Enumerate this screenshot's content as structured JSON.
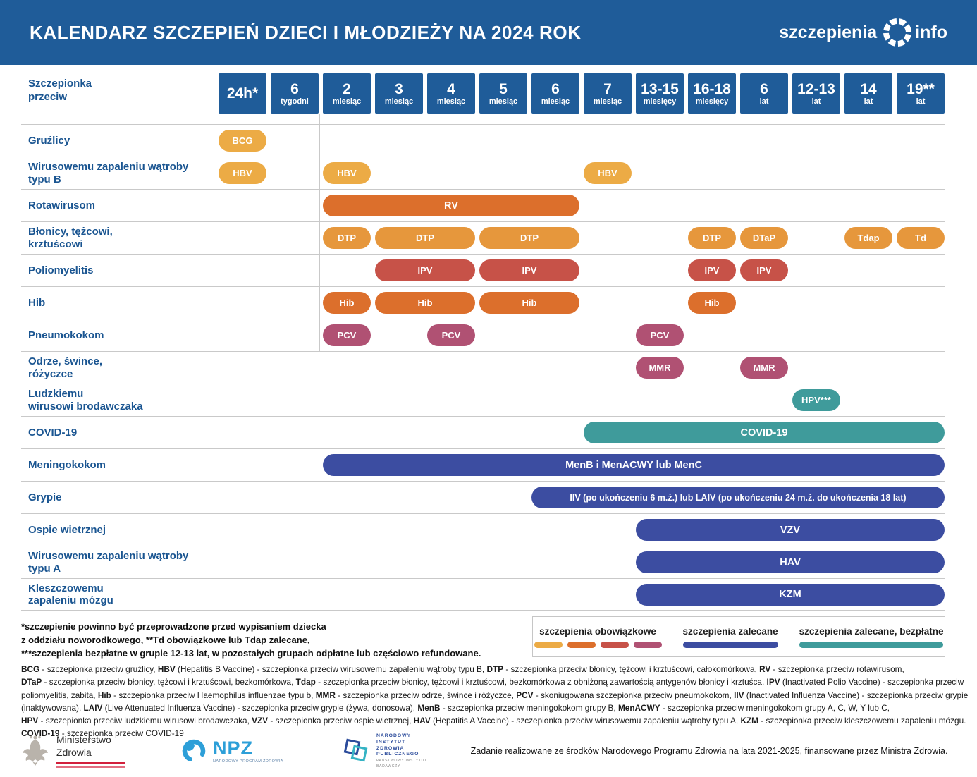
{
  "header": {
    "title": "KALENDARZ SZCZEPIEŃ DZIECI I MŁODZIEŻY NA 2024 ROK",
    "logo_left": "szczepienia",
    "logo_right": "info"
  },
  "table": {
    "corner_label": "Szczepionka\nprzeciw"
  },
  "chart_data": {
    "type": "gantt",
    "title": "KALENDARZ SZCZEPIEŃ DZIECI I MŁODZIEŻY NA 2024 ROK",
    "columns": [
      {
        "value": "24h*",
        "unit": ""
      },
      {
        "value": "6",
        "unit": "tygodni"
      },
      {
        "value": "2",
        "unit": "miesiąc"
      },
      {
        "value": "3",
        "unit": "miesiąc"
      },
      {
        "value": "4",
        "unit": "miesiąc"
      },
      {
        "value": "5",
        "unit": "miesiąc"
      },
      {
        "value": "6",
        "unit": "miesiąc"
      },
      {
        "value": "7",
        "unit": "miesiąc"
      },
      {
        "value": "13-15",
        "unit": "miesięcy"
      },
      {
        "value": "16-18",
        "unit": "miesięcy"
      },
      {
        "value": "6",
        "unit": "lat"
      },
      {
        "value": "12-13",
        "unit": "lat"
      },
      {
        "value": "14",
        "unit": "lat"
      },
      {
        "value": "19**",
        "unit": "lat"
      }
    ],
    "category_by_color": {
      "yellow": "szczepienia obowiązkowe",
      "dtp": "szczepienia obowiązkowe",
      "orange": "szczepienia obowiązkowe",
      "red": "szczepienia obowiązkowe",
      "maroon": "szczepienia obowiązkowe",
      "blue": "szczepienia zalecane",
      "teal": "szczepienia zalecane, bezpłatne"
    },
    "rows": [
      {
        "label": "Gruźlicy",
        "bars": [
          {
            "text": "BCG",
            "start": 0,
            "end": 0,
            "color": "yellow"
          }
        ]
      },
      {
        "label": "Wirusowemu zapaleniu wątroby\ntypu B",
        "bars": [
          {
            "text": "HBV",
            "start": 0,
            "end": 0,
            "color": "yellow"
          },
          {
            "text": "HBV",
            "start": 2,
            "end": 2,
            "color": "yellow"
          },
          {
            "text": "HBV",
            "start": 7,
            "end": 7,
            "color": "yellow"
          }
        ]
      },
      {
        "label": "Rotawirusom",
        "bars": [
          {
            "text": "RV",
            "start": 2,
            "end": 6,
            "color": "orange"
          }
        ]
      },
      {
        "label": "Błonicy, tężcowi,\nkrztuścowi",
        "bars": [
          {
            "text": "DTP",
            "start": 2,
            "end": 2,
            "color": "dtp"
          },
          {
            "text": "DTP",
            "start": 3,
            "end": 4,
            "color": "dtp"
          },
          {
            "text": "DTP",
            "start": 5,
            "end": 6,
            "color": "dtp"
          },
          {
            "text": "DTP",
            "start": 9,
            "end": 9,
            "color": "dtp"
          },
          {
            "text": "DTaP",
            "start": 10,
            "end": 10,
            "color": "dtp"
          },
          {
            "text": "Tdap",
            "start": 12,
            "end": 12,
            "color": "dtp"
          },
          {
            "text": "Td",
            "start": 13,
            "end": 13,
            "color": "dtp"
          }
        ]
      },
      {
        "label": "Poliomyelitis",
        "bars": [
          {
            "text": "IPV",
            "start": 3,
            "end": 4,
            "color": "red"
          },
          {
            "text": "IPV",
            "start": 5,
            "end": 6,
            "color": "red"
          },
          {
            "text": "IPV",
            "start": 9,
            "end": 9,
            "color": "red"
          },
          {
            "text": "IPV",
            "start": 10,
            "end": 10,
            "color": "red"
          }
        ]
      },
      {
        "label": "Hib",
        "bars": [
          {
            "text": "Hib",
            "start": 2,
            "end": 2,
            "color": "orange"
          },
          {
            "text": "Hib",
            "start": 3,
            "end": 4,
            "color": "orange"
          },
          {
            "text": "Hib",
            "start": 5,
            "end": 6,
            "color": "orange"
          },
          {
            "text": "Hib",
            "start": 9,
            "end": 9,
            "color": "orange"
          }
        ]
      },
      {
        "label": "Pneumokokom",
        "bars": [
          {
            "text": "PCV",
            "start": 2,
            "end": 2,
            "color": "maroon"
          },
          {
            "text": "PCV",
            "start": 4,
            "end": 4,
            "color": "maroon"
          },
          {
            "text": "PCV",
            "start": 8,
            "end": 8,
            "color": "maroon"
          }
        ]
      },
      {
        "label": "Odrze, śwince,\nróżyczce",
        "bars": [
          {
            "text": "MMR",
            "start": 8,
            "end": 8,
            "color": "maroon"
          },
          {
            "text": "MMR",
            "start": 10,
            "end": 10,
            "color": "maroon"
          }
        ]
      },
      {
        "label": "Ludzkiemu\nwirusowi brodawczaka",
        "bars": [
          {
            "text": "HPV***",
            "start": 11,
            "end": 11,
            "color": "teal"
          }
        ]
      },
      {
        "label": "COVID-19",
        "bars": [
          {
            "text": "COVID-19",
            "start": 7,
            "end": 13,
            "color": "teal"
          }
        ]
      },
      {
        "label": "Meningokokom",
        "bars": [
          {
            "text": "MenB i MenACWY lub MenC",
            "start": 2,
            "end": 13,
            "color": "blue"
          }
        ]
      },
      {
        "label": "Grypie",
        "bars": [
          {
            "text": "IIV (po ukończeniu 6 m.ż.) lub LAIV (po ukończeniu 24 m.ż. do ukończenia 18 lat)",
            "start": 6,
            "end": 13,
            "color": "blue"
          }
        ]
      },
      {
        "label": "Ospie wietrznej",
        "bars": [
          {
            "text": "VZV",
            "start": 8,
            "end": 13,
            "color": "blue"
          }
        ]
      },
      {
        "label": "Wirusowemu zapaleniu wątroby\ntypu A",
        "bars": [
          {
            "text": "HAV",
            "start": 8,
            "end": 13,
            "color": "blue"
          }
        ]
      },
      {
        "label": "Kleszczowemu\nzapaleniu mózgu",
        "bars": [
          {
            "text": "KZM",
            "start": 8,
            "end": 13,
            "color": "blue"
          }
        ]
      }
    ],
    "legend_position": "bottom-right",
    "grid": "horizontal-lines"
  },
  "legend": {
    "items": [
      {
        "label": "szczepienia obowiązkowe",
        "swatches": [
          "yellow",
          "orange",
          "red",
          "maroon"
        ]
      },
      {
        "label": "szczepienia zalecane",
        "swatches": [
          "blue"
        ]
      },
      {
        "label": "szczepienia zalecane, bezpłatne",
        "swatches": [
          "teal"
        ]
      }
    ]
  },
  "footnotes": [
    "*szczepienie powinno być przeprowadzone przed wypisaniem dziecka",
    "z oddziału noworodkowego, **Td obowiązkowe lub Tdap zalecane,",
    "***szczepienia bezpłatne w grupie 12-13 lat, w pozostałych grupach odpłatne lub częściowo refundowane."
  ],
  "definitions": [
    "**BCG** - szczepionka przeciw gruźlicy, **HBV** (Hepatitis B Vaccine) - szczepionka przeciw wirusowemu zapaleniu wątroby typu B, **DTP** - szczepionka przeciw błonicy, tężcowi i krztuścowi, całokomórkowa, **RV** - szczepionka przeciw rotawirusom,",
    "**DTaP** - szczepionka przeciw błonicy, tężcowi i krztuścowi, bezkomórkowa, **Tdap** - szczepionka przeciw błonicy, tężcowi i krztuścowi, bezkomórkowa z obniżoną zawartością antygenów błonicy i krztuśca, **IPV** (Inactivated Polio Vaccine) - szczepionka przeciw",
    "poliomyelitis, zabita, **Hib** - szczepionka przeciw Haemophilus influenzae typu b, **MMR** - szczepionka przeciw odrze, śwince i różyczce, **PCV** - skoniugowana szczepionka przeciw pneumokokom, **IIV** (Inactivated Influenza Vaccine) - szczepionka przeciw grypie",
    "(inaktywowana), **LAIV** (Live Attenuated Influenza Vaccine) - szczepionka przeciw grypie (żywa, donosowa), **MenB** - szczepionka przeciw meningokokom grupy B, **MenACWY** - szczepionka przeciw meningokokom grupy A, C, W, Y lub C,",
    "**HPV** - szczepionka przeciw ludzkiemu wirusowi brodawczaka, **VZV** - szczepionka przeciw ospie wietrznej, **HAV** (Hepatitis A Vaccine) - szczepionka przeciw wirusowemu zapaleniu wątroby typu A, **KZM** - szczepionka przeciw kleszczowemu zapaleniu mózgu.",
    "**COVID-19** - szczepionka przeciw COVID-19"
  ],
  "footer": {
    "ministry_label": "Ministerstwo\nZdrowia",
    "npz_label": "NPZ",
    "npz_caption": "NARODOWY PROGRAM ZDROWIA",
    "nizp_lines": [
      "NARODOWY",
      "INSTYTUT",
      "ZDROWIA",
      "PUBLICZNEGO"
    ],
    "nizp_sub_lines": [
      "PAŃSTWOWY INSTYTUT",
      "BADAWCZY"
    ],
    "funding_text": "Zadanie realizowane ze środków Narodowego Programu Zdrowia na lata 2021-2025, finansowane przez Ministra Zdrowia."
  },
  "colors": {
    "header_blue": "#1F5C99",
    "label_blue": "#1A5591",
    "yellow": "#ECAB45",
    "dtp": "#E6973C",
    "orange": "#DC6F2C",
    "red": "#C75248",
    "maroon": "#B05173",
    "blue": "#3C4DA1",
    "teal": "#3F9B9B",
    "line_gray": "#C9C9C9",
    "npz_blue": "#2D9FD8",
    "flag_red": "#D2203C"
  }
}
